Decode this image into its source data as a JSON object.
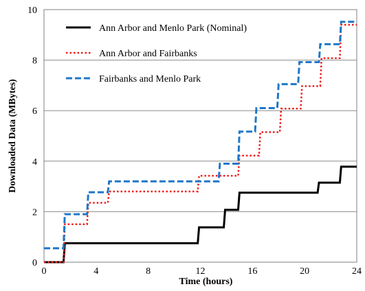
{
  "chart_data": {
    "type": "line",
    "title": "",
    "xlabel": "Time (hours)",
    "ylabel": "Downloaded Data (MBytes)",
    "xlim": [
      0,
      24
    ],
    "ylim": [
      0,
      10
    ],
    "xticks": [
      0,
      4,
      8,
      12,
      16,
      20,
      24
    ],
    "yticks": [
      0,
      2,
      4,
      6,
      8,
      10
    ],
    "grid": "horizontal",
    "legend_position": "top-left",
    "series": [
      {
        "name": "Ann Arbor and Menlo Park (Nominal)",
        "color": "#000000",
        "style": "solid",
        "x": [
          0,
          1.5,
          1.6,
          11.8,
          11.9,
          13.8,
          13.9,
          14.9,
          15.0,
          21.0,
          21.1,
          22.7,
          22.8,
          24
        ],
        "y": [
          0,
          0,
          0.75,
          0.75,
          1.38,
          1.38,
          2.07,
          2.07,
          2.75,
          2.75,
          3.15,
          3.15,
          3.78,
          3.78
        ]
      },
      {
        "name": "Ann Arbor and Fairbanks",
        "color": "#ee1c1c",
        "style": "dotted",
        "x": [
          0,
          1.5,
          1.6,
          3.3,
          3.4,
          4.9,
          5.0,
          11.8,
          11.9,
          13.8,
          13.9,
          14.9,
          15.0,
          16.5,
          16.6,
          18.1,
          18.2,
          19.7,
          19.8,
          21.2,
          21.3,
          22.7,
          22.8,
          24
        ],
        "y": [
          0,
          0,
          1.5,
          1.5,
          2.35,
          2.35,
          2.8,
          2.8,
          3.42,
          3.42,
          3.42,
          3.42,
          4.22,
          4.22,
          5.15,
          5.15,
          6.08,
          6.08,
          6.97,
          6.97,
          8.08,
          8.08,
          9.4,
          9.4
        ]
      },
      {
        "name": "Fairbanks and Menlo Park",
        "color": "#1f77c8",
        "style": "dashed",
        "x": [
          0,
          1.5,
          1.6,
          3.3,
          3.4,
          4.9,
          5.0,
          11.8,
          11.9,
          13.4,
          13.5,
          14.9,
          15.0,
          16.2,
          16.3,
          17.9,
          18.0,
          19.5,
          19.6,
          21.1,
          21.2,
          22.7,
          22.8,
          24
        ],
        "y": [
          0.55,
          0.55,
          1.9,
          1.9,
          2.77,
          2.77,
          3.2,
          3.2,
          3.2,
          3.2,
          3.9,
          3.9,
          5.17,
          5.17,
          6.1,
          6.1,
          7.05,
          7.05,
          7.92,
          7.92,
          8.63,
          8.63,
          9.52,
          9.52
        ]
      }
    ]
  }
}
